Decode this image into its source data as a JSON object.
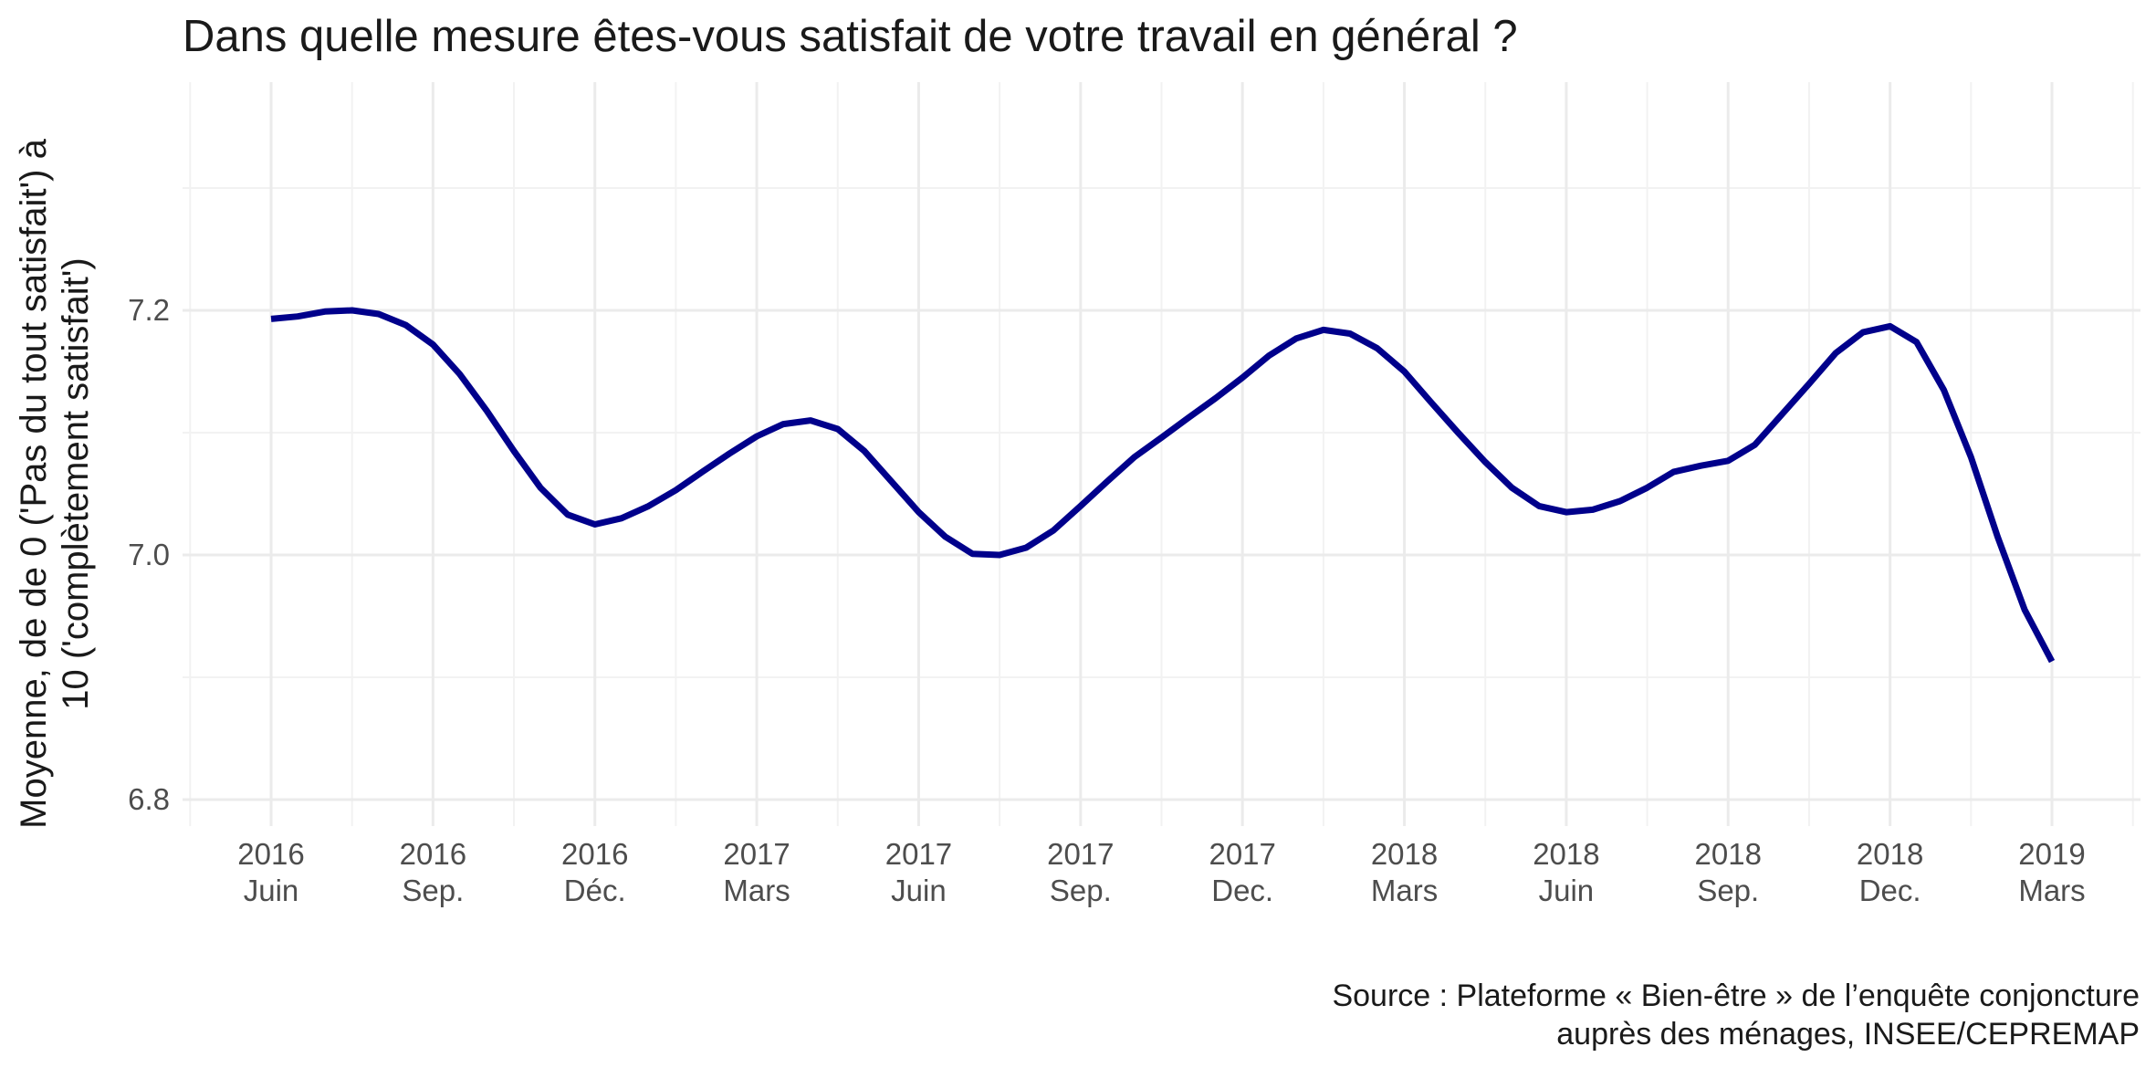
{
  "chart_data": {
    "type": "line",
    "title": "Dans quelle mesure êtes-vous satisfait de votre travail en général ?",
    "ylabel_lines": [
      "Moyenne, de de 0 ('Pas du tout satisfait') à",
      "10 ('complètement satisfait')"
    ],
    "xlabel": "",
    "caption_lines": [
      "Source : Plateforme « Bien-être » de l’enquête conjoncture",
      "auprès des ménages, INSEE/CEPREMAP"
    ],
    "ylim": [
      6.78,
      7.37
    ],
    "y_ticks": [
      6.8,
      7.0,
      7.2
    ],
    "y_tick_labels": [
      "6.8",
      "7.0",
      "7.2"
    ],
    "x_range_months": [
      2016.33,
      2019.35
    ],
    "x_ticks": [
      {
        "month": 2016.417,
        "label": [
          "2016",
          "Juin"
        ]
      },
      {
        "month": 2016.667,
        "label": [
          "2016",
          "Sep."
        ]
      },
      {
        "month": 2016.917,
        "label": [
          "2016",
          "Déc."
        ]
      },
      {
        "month": 2017.167,
        "label": [
          "2017",
          "Mars"
        ]
      },
      {
        "month": 2017.417,
        "label": [
          "2017",
          "Juin"
        ]
      },
      {
        "month": 2017.667,
        "label": [
          "2017",
          "Sep."
        ]
      },
      {
        "month": 2017.917,
        "label": [
          "2017",
          "Dec."
        ]
      },
      {
        "month": 2018.167,
        "label": [
          "2018",
          "Mars"
        ]
      },
      {
        "month": 2018.417,
        "label": [
          "2018",
          "Juin"
        ]
      },
      {
        "month": 2018.667,
        "label": [
          "2018",
          "Sep."
        ]
      },
      {
        "month": 2018.917,
        "label": [
          "2018",
          "Dec."
        ]
      },
      {
        "month": 2019.167,
        "label": [
          "2019",
          "Mars"
        ]
      }
    ],
    "grid": true,
    "series": [
      {
        "name": "",
        "role": "mean",
        "color": "#00008b",
        "style": "solid",
        "x": [
          2016.417,
          2016.458,
          2016.5,
          2016.542,
          2016.583,
          2016.625,
          2016.667,
          2016.708,
          2016.75,
          2016.792,
          2016.833,
          2016.875,
          2016.917,
          2016.958,
          2017.0,
          2017.042,
          2017.083,
          2017.125,
          2017.167,
          2017.208,
          2017.25,
          2017.292,
          2017.333,
          2017.375,
          2017.417,
          2017.458,
          2017.5,
          2017.542,
          2017.583,
          2017.625,
          2017.667,
          2017.708,
          2017.75,
          2017.792,
          2017.833,
          2017.875,
          2017.917,
          2017.958,
          2018.0,
          2018.042,
          2018.083,
          2018.125,
          2018.167,
          2018.208,
          2018.25,
          2018.292,
          2018.333,
          2018.375,
          2018.417,
          2018.458,
          2018.5,
          2018.542,
          2018.583,
          2018.625,
          2018.667,
          2018.708,
          2018.75,
          2018.792,
          2018.833,
          2018.875,
          2018.917,
          2018.958,
          2019.0,
          2019.042,
          2019.083,
          2019.125,
          2019.167
        ],
        "y": [
          7.193,
          7.195,
          7.199,
          7.2,
          7.197,
          7.188,
          7.172,
          7.148,
          7.118,
          7.085,
          7.055,
          7.033,
          7.025,
          7.03,
          7.04,
          7.053,
          7.068,
          7.083,
          7.097,
          7.107,
          7.11,
          7.103,
          7.085,
          7.06,
          7.035,
          7.015,
          7.001,
          7.0,
          7.006,
          7.02,
          7.04,
          7.06,
          7.08,
          7.096,
          7.112,
          7.128,
          7.145,
          7.163,
          7.177,
          7.184,
          7.181,
          7.169,
          7.15,
          7.125,
          7.1,
          7.076,
          7.055,
          7.04,
          7.035,
          7.037,
          7.044,
          7.055,
          7.068,
          7.073,
          7.077,
          7.09,
          7.115,
          7.14,
          7.165,
          7.182,
          7.187,
          7.174,
          7.135,
          7.08,
          7.015,
          6.955,
          6.913
        ]
      }
    ]
  }
}
